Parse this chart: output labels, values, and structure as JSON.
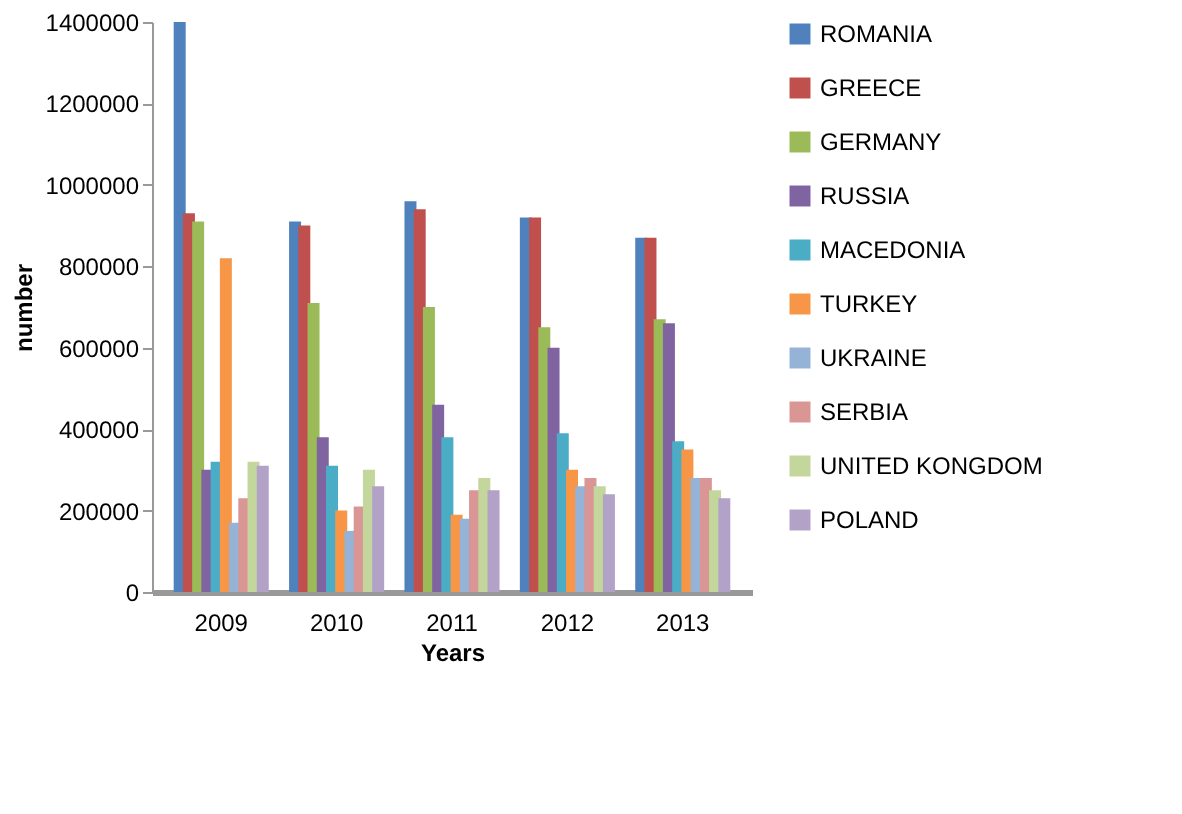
{
  "chart_data": {
    "type": "bar",
    "xlabel": "Years",
    "ylabel": "number",
    "categories": [
      "2009",
      "2010",
      "2011",
      "2012",
      "2013"
    ],
    "ylim": [
      0,
      1400000
    ],
    "yticks": [
      0,
      200000,
      400000,
      600000,
      800000,
      1000000,
      1200000,
      1400000
    ],
    "grid": false,
    "legend": "right",
    "series": [
      {
        "name": "ROMANIA",
        "color": "#4f81bd",
        "values": [
          1400000,
          910000,
          960000,
          920000,
          870000
        ]
      },
      {
        "name": "GREECE",
        "color": "#c0504d",
        "values": [
          930000,
          900000,
          940000,
          920000,
          870000
        ]
      },
      {
        "name": "GERMANY",
        "color": "#9bbb59",
        "values": [
          910000,
          710000,
          700000,
          650000,
          670000
        ]
      },
      {
        "name": "RUSSIA",
        "color": "#8064a2",
        "values": [
          300000,
          380000,
          460000,
          600000,
          660000
        ]
      },
      {
        "name": "MACEDONIA",
        "color": "#4bacc6",
        "values": [
          320000,
          310000,
          380000,
          390000,
          370000
        ]
      },
      {
        "name": "TURKEY",
        "color": "#f79646",
        "values": [
          820000,
          200000,
          190000,
          300000,
          350000
        ]
      },
      {
        "name": "UKRAINE",
        "color": "#95b3d7",
        "values": [
          170000,
          150000,
          180000,
          260000,
          280000
        ]
      },
      {
        "name": "SERBIA",
        "color": "#d99694",
        "values": [
          230000,
          210000,
          250000,
          280000,
          280000
        ]
      },
      {
        "name": "UNITED KONGDOM",
        "color": "#c3d69b",
        "values": [
          320000,
          300000,
          280000,
          260000,
          250000
        ]
      },
      {
        "name": "POLAND",
        "color": "#b3a2c7",
        "values": [
          310000,
          260000,
          250000,
          240000,
          230000
        ]
      }
    ]
  }
}
